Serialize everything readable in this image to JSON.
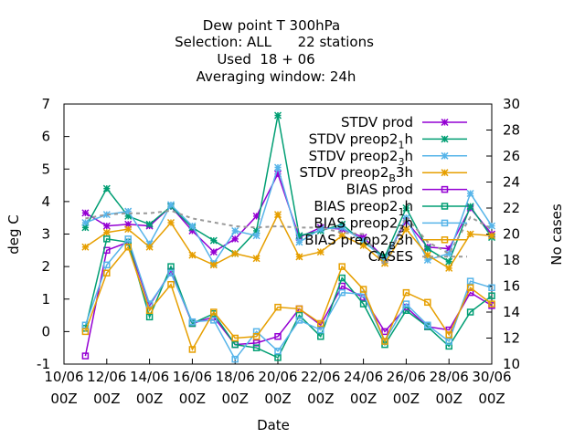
{
  "chart_data": {
    "type": "line",
    "title_lines": [
      "Dew point T 300hPa",
      "Selection: ALL      22 stations",
      "Used  18 + 06",
      "Averaging window: 24h"
    ],
    "xlabel": "Date",
    "ylabel": "deg C",
    "y2label": "No cases",
    "xlim": [
      0,
      20
    ],
    "ylim": [
      -1,
      7
    ],
    "y2lim": [
      10,
      30
    ],
    "x_ticks": [
      {
        "x": 0,
        "line1": "10/06",
        "line2": "00Z"
      },
      {
        "x": 2,
        "line1": "12/06",
        "line2": "00Z"
      },
      {
        "x": 4,
        "line1": "14/06",
        "line2": "00Z"
      },
      {
        "x": 6,
        "line1": "16/06",
        "line2": "00Z"
      },
      {
        "x": 8,
        "line1": "18/06",
        "line2": "00Z"
      },
      {
        "x": 10,
        "line1": "20/06",
        "line2": "00Z"
      },
      {
        "x": 12,
        "line1": "22/06",
        "line2": "00Z"
      },
      {
        "x": 14,
        "line1": "24/06",
        "line2": "00Z"
      },
      {
        "x": 16,
        "line1": "26/06",
        "line2": "00Z"
      },
      {
        "x": 18,
        "line1": "28/06",
        "line2": "00Z"
      },
      {
        "x": 20,
        "line1": "30/06",
        "line2": "00Z"
      }
    ],
    "y_ticks": [
      -1,
      0,
      1,
      2,
      3,
      4,
      5,
      6,
      7
    ],
    "y2_ticks": [
      10,
      12,
      14,
      16,
      18,
      20,
      22,
      24,
      26,
      28,
      30
    ],
    "x": [
      1,
      2,
      3,
      4,
      5,
      6,
      7,
      8,
      9,
      10,
      11,
      12,
      13,
      14,
      15,
      16,
      17,
      18,
      19,
      20
    ],
    "series": [
      {
        "name": "STDV prod",
        "legend": {
          "text": "STDV prod"
        },
        "color": "#9400d3",
        "marker": "x",
        "values": [
          3.65,
          3.25,
          3.3,
          3.25,
          3.85,
          3.1,
          2.45,
          2.85,
          3.55,
          4.85,
          2.9,
          3.2,
          3.15,
          2.9,
          2.25,
          3.4,
          2.6,
          2.55,
          3.8,
          3.0
        ]
      },
      {
        "name": "STDV preop2_1h",
        "legend": {
          "text": "STDV preop2",
          "sub": "1",
          "suffix": "h"
        },
        "color": "#009e73",
        "marker": "x",
        "values": [
          3.2,
          4.4,
          3.55,
          3.3,
          3.85,
          3.2,
          2.8,
          2.4,
          3.1,
          6.65,
          2.95,
          3.1,
          3.3,
          2.75,
          2.3,
          3.8,
          2.55,
          2.15,
          3.85,
          2.9
        ]
      },
      {
        "name": "STDV preop2_3h",
        "legend": {
          "text": "STDV preop2",
          "sub": "3",
          "suffix": "h"
        },
        "color": "#56b4e9",
        "marker": "x",
        "values": [
          3.35,
          3.6,
          3.7,
          2.7,
          3.9,
          3.25,
          2.1,
          3.1,
          2.95,
          5.05,
          2.75,
          3.15,
          3.2,
          2.8,
          2.2,
          3.5,
          2.2,
          2.4,
          4.25,
          3.25
        ]
      },
      {
        "name": "STDV preop2_B3h",
        "legend": {
          "text": "STDV preop2",
          "sub": "B",
          "suffix": "3h"
        },
        "color": "#e69f00",
        "marker": "x",
        "values": [
          2.6,
          3.05,
          3.15,
          2.6,
          3.35,
          2.35,
          2.05,
          2.4,
          2.25,
          3.6,
          2.3,
          2.45,
          2.95,
          2.65,
          2.1,
          3.15,
          2.35,
          1.95,
          3.0,
          2.95
        ]
      },
      {
        "name": "BIAS prod",
        "legend": {
          "text": "BIAS prod"
        },
        "color": "#9400d3",
        "marker": "square",
        "values": [
          -0.75,
          2.5,
          2.75,
          0.8,
          1.85,
          0.25,
          0.45,
          -0.4,
          -0.35,
          -0.15,
          0.7,
          0.2,
          1.4,
          1.05,
          0.0,
          0.75,
          0.15,
          0.05,
          1.2,
          0.8
        ]
      },
      {
        "name": "BIAS preop2_1h",
        "legend": {
          "text": "BIAS preop2",
          "sub": "1",
          "suffix": "h"
        },
        "color": "#009e73",
        "marker": "square",
        "values": [
          0.1,
          2.85,
          2.75,
          0.45,
          2.0,
          0.25,
          0.55,
          -0.4,
          -0.5,
          -0.8,
          0.5,
          -0.15,
          1.65,
          0.85,
          -0.4,
          0.65,
          0.15,
          -0.45,
          0.6,
          1.1
        ]
      },
      {
        "name": "BIAS preop2_3h",
        "legend": {
          "text": "BIAS preop2",
          "sub": "3",
          "suffix": "h"
        },
        "color": "#56b4e9",
        "marker": "square",
        "values": [
          0.2,
          2.05,
          2.85,
          0.85,
          1.8,
          0.3,
          0.35,
          -0.85,
          0.0,
          -0.6,
          0.35,
          0.05,
          1.2,
          1.15,
          -0.3,
          0.85,
          0.2,
          -0.3,
          1.55,
          1.35
        ]
      },
      {
        "name": "BIAS preop2_B3h",
        "legend": {
          "text": "BIAS preop2",
          "sub": "B",
          "suffix": "3h"
        },
        "color": "#e69f00",
        "marker": "square",
        "values": [
          0.0,
          1.8,
          2.6,
          0.65,
          1.45,
          -0.55,
          0.6,
          -0.2,
          -0.15,
          0.75,
          0.7,
          0.25,
          2.0,
          1.3,
          -0.3,
          1.2,
          0.9,
          -0.1,
          1.35,
          0.85
        ]
      },
      {
        "name": "CASES",
        "legend": {
          "text": "CASES"
        },
        "color": "#999999",
        "dashed": true,
        "axis": "y2",
        "values": [
          21.2,
          21.5,
          21.6,
          21.6,
          21.8,
          21.2,
          20.9,
          20.6,
          20.5,
          20.6,
          20.5,
          20.5,
          20.1,
          20.0,
          17.6,
          21.3,
          19.4,
          18.5,
          21.3,
          20.4
        ]
      }
    ]
  }
}
